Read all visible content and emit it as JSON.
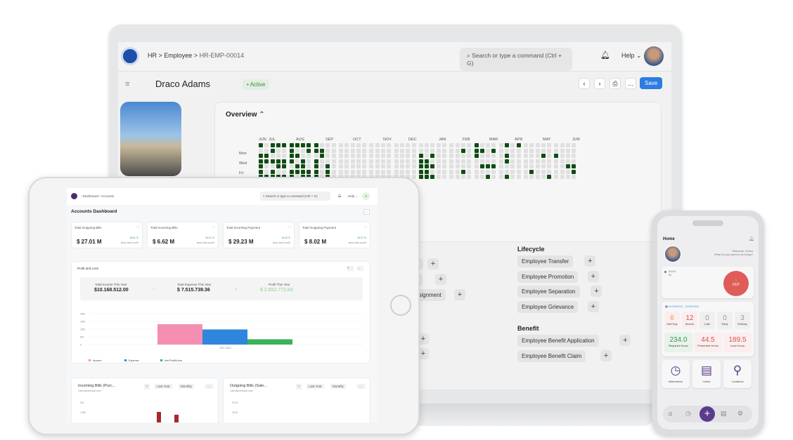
{
  "laptop": {
    "breadcrumb": [
      "HR",
      "Employee",
      "HR-EMP-00014"
    ],
    "search_placeholder": "Search or type a command (Ctrl + G)",
    "help_label": "Help",
    "employee_name": "Draco Adams",
    "status": "Active",
    "save_label": "Save",
    "overview_title": "Overview",
    "heatmap": {
      "months": [
        "JUN",
        "JUL",
        "AUG",
        "SEP",
        "OCT",
        "NOV",
        "DEC",
        "JAN",
        "FEB",
        "MAR",
        "APR",
        "MAY",
        "JUN"
      ],
      "days": [
        "Mon",
        "Wed",
        "Fri"
      ],
      "active_color": "#0f4d13"
    },
    "sections": [
      {
        "title": "Lifecycle",
        "items": [
          "Employee Transfer",
          "Employee Promotion",
          "Employee Separation",
          "Employee Grievance"
        ]
      },
      {
        "title": "Benefit",
        "items": [
          "Employee Benefit Application",
          "Employee Benefit Claim"
        ]
      }
    ],
    "partial_items": [
      "on",
      "Assignment"
    ],
    "accent": "#2d7de0"
  },
  "tablet": {
    "breadcrumb": [
      "Dashboard",
      "Accounts"
    ],
    "search_placeholder": "Search or type a command (Ctrl + G)",
    "help_label": "Help",
    "user_initial": "A",
    "title": "Accounts Dashboard",
    "cards": [
      {
        "label": "Total Outgoing Bills",
        "value": "$ 27.01 M",
        "change": "18.51 %",
        "note": "since last month"
      },
      {
        "label": "Total Incoming Bills",
        "value": "$ 6.62 M",
        "change": "30.51 %",
        "note": "since last month"
      },
      {
        "label": "Total Incoming Payment",
        "value": "$ 29.23 M",
        "change": "15.33 %",
        "note": "since last month"
      },
      {
        "label": "Total Outgoing Payment",
        "value": "$ 8.02 M",
        "change": "25.37 %",
        "note": "since last month"
      }
    ],
    "pnl": {
      "title": "Profit and Loss",
      "income_label": "Total Income This Year",
      "income": "$10.168.512.00",
      "expense_label": "Total Expense This Year",
      "expense": "$ 7.515.739.36",
      "profit_label": "Profit This Year",
      "profit": "$ 2.652.772.64",
      "minus": "-",
      "equals": "="
    },
    "chart_data": {
      "type": "bar",
      "categories": [
        "2021-2022"
      ],
      "series": [
        {
          "name": "Income",
          "values": [
            10.17
          ],
          "color": "#f48fb1"
        },
        {
          "name": "Expense",
          "values": [
            7.52
          ],
          "color": "#2e86de"
        },
        {
          "name": "Net Profit/Loss",
          "values": [
            2.65
          ],
          "color": "#3cb25a"
        }
      ],
      "yticks": [
        "0",
        "5M",
        "10M",
        "15M",
        "20M"
      ],
      "ylim": [
        0,
        20
      ],
      "legend": "bottom-left"
    },
    "bottom_cards": [
      {
        "title": "Incoming Bills (Purc...",
        "sub": "Last synced just now",
        "period": "Last Year",
        "interval": "Monthly",
        "yticks": [
          "2M",
          "1.5M"
        ]
      },
      {
        "title": "Outgoing Bills (Sale...",
        "sub": "Last synced just now",
        "period": "Last Year",
        "interval": "Monthly",
        "yticks": [
          "20 M",
          "15 M"
        ]
      }
    ]
  },
  "phone": {
    "title": "Home",
    "welcome": "Welcome, Draco",
    "question": "What do you want to do today?",
    "checkin_time": "09:00",
    "checkin_label": "IN",
    "out_label": "OUT",
    "date_range": "01/05/2024 - 31/05/2024",
    "stats": [
      {
        "value": "6",
        "label": "Half Day",
        "color": "#e8955a"
      },
      {
        "value": "12",
        "label": "Absent",
        "color": "#d9534f"
      },
      {
        "value": "0",
        "label": "Late",
        "color": "#999"
      },
      {
        "value": "0",
        "label": "Early",
        "color": "#999"
      },
      {
        "value": "3",
        "label": "Holiday",
        "color": "#999"
      }
    ],
    "hours": [
      {
        "value": "234.0",
        "label": "Required Hours",
        "color": "#3a9a55"
      },
      {
        "value": "44.5",
        "label": "Presented Hours",
        "color": "#d9534f"
      },
      {
        "value": "189.5",
        "label": "Less Hours",
        "color": "#d9534f"
      }
    ],
    "tiles": [
      "Attendance",
      "Leave",
      "Locations"
    ],
    "nav": [
      "home",
      "history",
      "add",
      "list",
      "settings"
    ],
    "accent": "#5b3b8c"
  }
}
